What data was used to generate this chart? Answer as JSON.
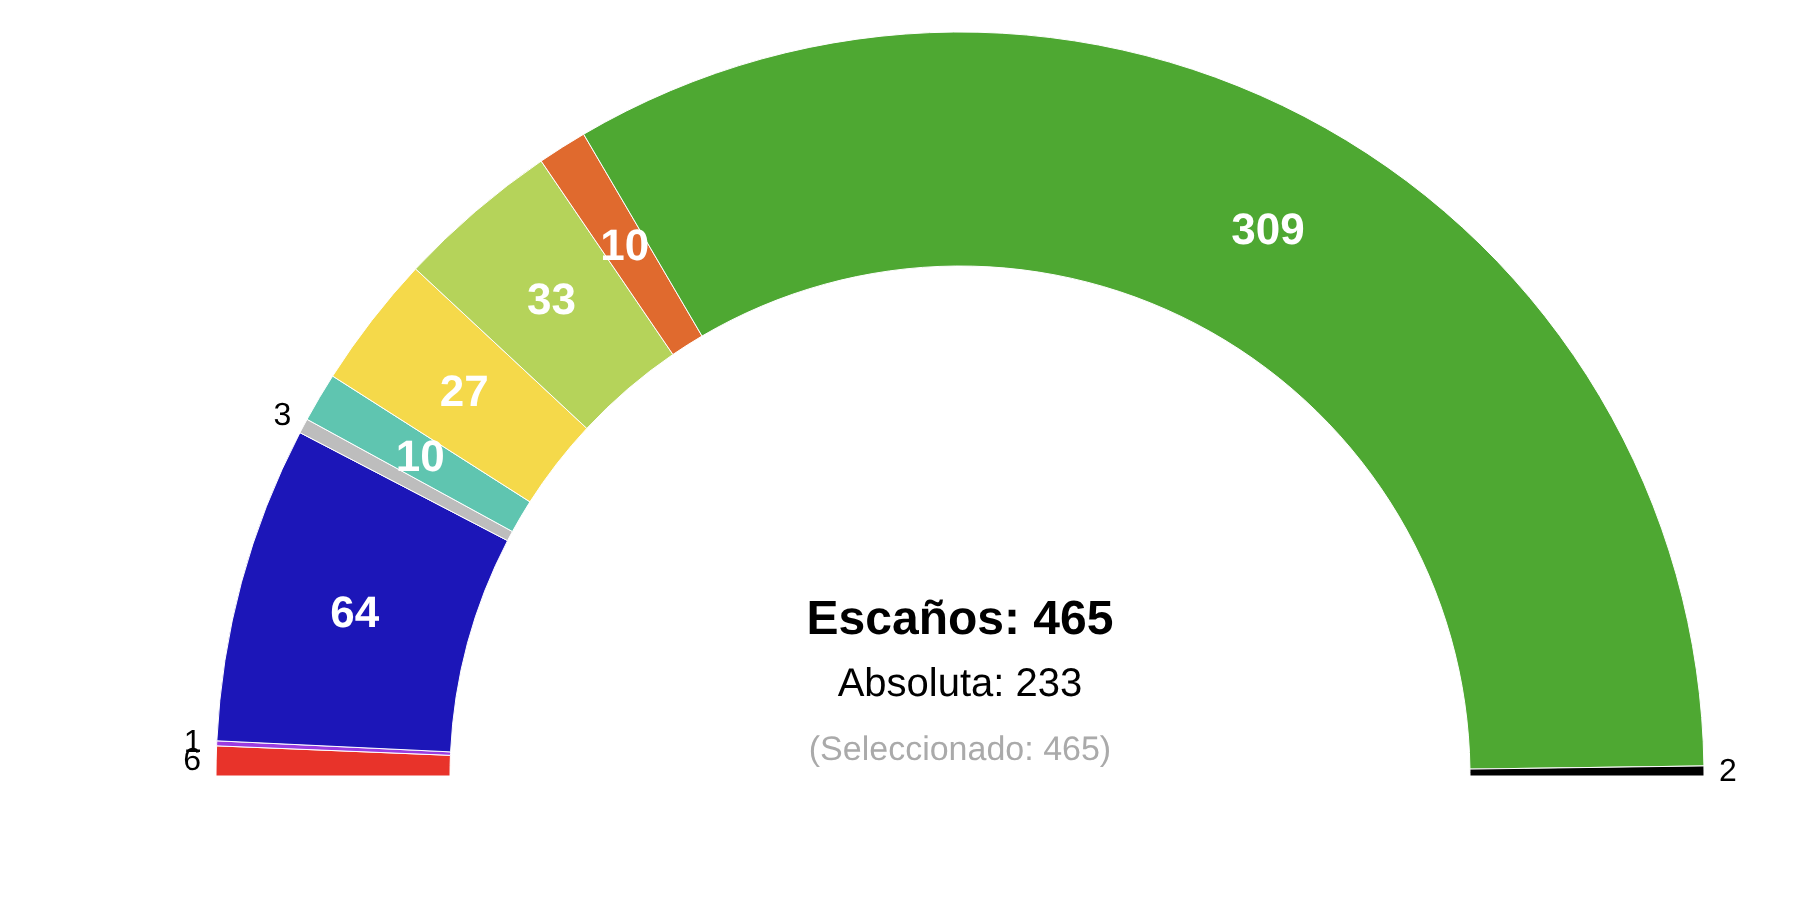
{
  "chart_data": {
    "type": "donut",
    "categories": [
      null,
      null,
      null,
      null,
      null,
      null,
      null,
      null,
      null,
      null
    ],
    "values": [
      6,
      1,
      64,
      3,
      10,
      27,
      33,
      10,
      309,
      2
    ],
    "colors": [
      "#e8332a",
      "#9a3ce0",
      "#1c16b8",
      "#bdbdbd",
      "#5fc5b0",
      "#f5d94a",
      "#b5d35a",
      "#e06a2e",
      "#4ea832",
      "#000000"
    ],
    "data_labels": true,
    "annotations": [
      "Escaños: 465",
      "Absoluta: 233",
      "(Seleccionado: 465)"
    ]
  }
}
